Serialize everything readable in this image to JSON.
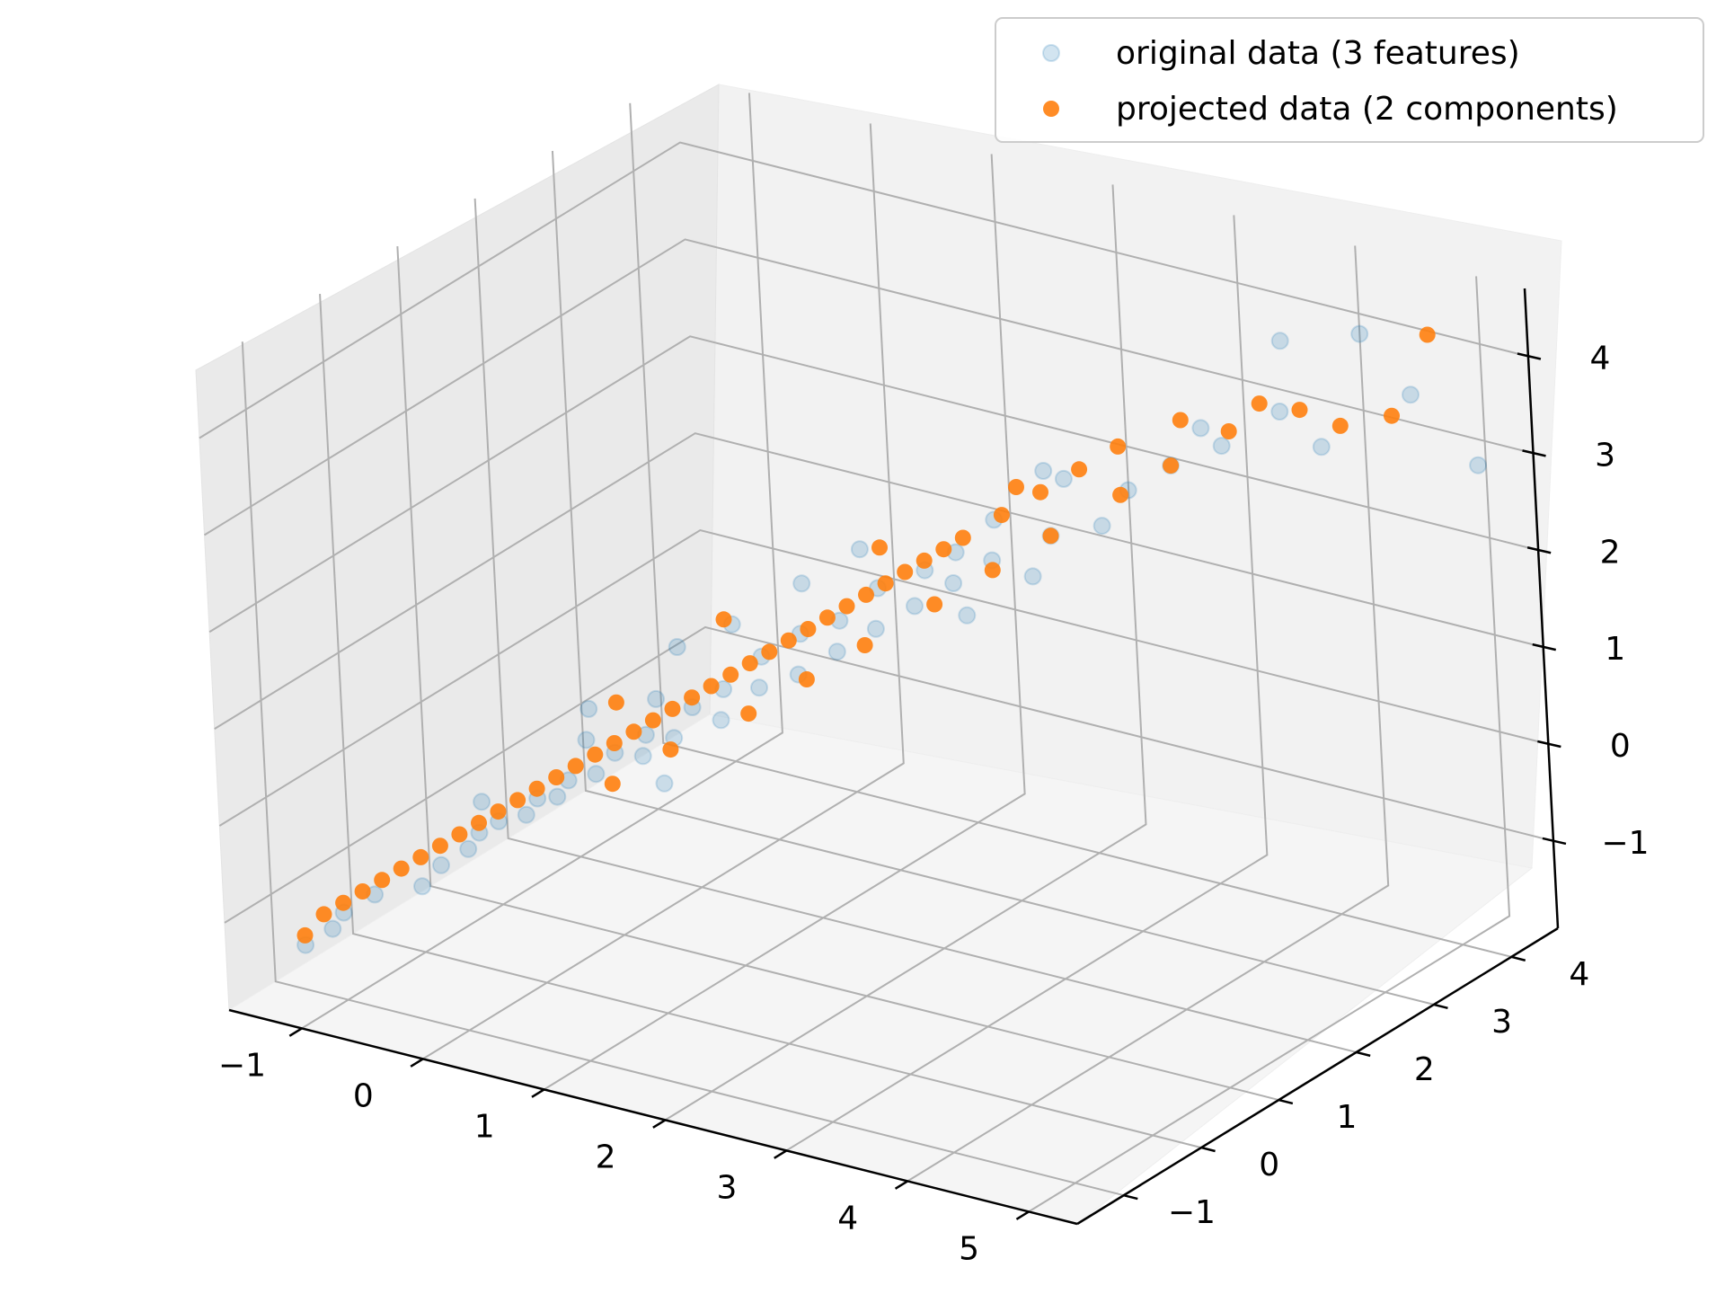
{
  "chart_data": {
    "type": "scatter",
    "projection": "3d",
    "title": "",
    "xlabel": "",
    "ylabel": "",
    "zlabel": "",
    "xlim": [
      -1.6,
      5.4
    ],
    "ylim": [
      -1.6,
      4.6
    ],
    "zlim": [
      -1.9,
      4.7
    ],
    "x_ticks": [
      -1,
      0,
      1,
      2,
      3,
      4,
      5
    ],
    "y_ticks": [
      -1,
      0,
      1,
      2,
      3,
      4
    ],
    "z_ticks": [
      -1,
      0,
      1,
      2,
      3,
      4
    ],
    "grid": true,
    "legend_position": "top-right",
    "series": [
      {
        "name": "original data (3 features)",
        "color": "#1f77b4",
        "alpha": 0.2,
        "points": [
          [
            -1.2,
            -1.2,
            -1.3
          ],
          [
            -1.1,
            -1.0,
            -1.2
          ],
          [
            -1.0,
            -1.0,
            -1.0
          ],
          [
            -0.8,
            -0.9,
            -0.8
          ],
          [
            -0.6,
            -0.6,
            -0.8
          ],
          [
            -0.5,
            -0.5,
            -0.6
          ],
          [
            -0.4,
            -0.3,
            -0.5
          ],
          [
            -0.3,
            -0.3,
            -0.3
          ],
          [
            -0.2,
            -0.2,
            -0.2
          ],
          [
            -0.1,
            0.0,
            -0.2
          ],
          [
            0.0,
            0.0,
            0.0
          ],
          [
            0.1,
            0.1,
            0.0
          ],
          [
            0.2,
            0.1,
            0.2
          ],
          [
            0.3,
            0.3,
            0.2
          ],
          [
            0.3,
            0.2,
            0.6
          ],
          [
            0.4,
            0.4,
            0.4
          ],
          [
            0.5,
            0.6,
            0.3
          ],
          [
            0.6,
            0.5,
            0.6
          ],
          [
            0.7,
            0.7,
            0.5
          ],
          [
            0.7,
            0.5,
            1.0
          ],
          [
            0.8,
            0.8,
            0.8
          ],
          [
            0.9,
            1.0,
            0.6
          ],
          [
            1.0,
            0.9,
            1.0
          ],
          [
            1.1,
            1.2,
            0.9
          ],
          [
            1.2,
            1.1,
            1.3
          ],
          [
            1.3,
            1.4,
            1.0
          ],
          [
            1.4,
            1.3,
            1.5
          ],
          [
            1.5,
            1.6,
            1.2
          ],
          [
            1.6,
            1.5,
            1.6
          ],
          [
            1.7,
            1.8,
            1.4
          ],
          [
            1.8,
            1.7,
            1.9
          ],
          [
            1.9,
            2.0,
            1.6
          ],
          [
            2.0,
            2.0,
            2.0
          ],
          [
            2.1,
            2.2,
            1.8
          ],
          [
            2.2,
            2.1,
            2.2
          ],
          [
            2.3,
            2.4,
            2.0
          ],
          [
            2.4,
            2.3,
            2.5
          ],
          [
            2.6,
            2.7,
            2.2
          ],
          [
            2.8,
            2.6,
            2.9
          ],
          [
            3.0,
            3.1,
            2.6
          ],
          [
            0.4,
            0.1,
            1.0
          ],
          [
            0.9,
            0.5,
            1.6
          ],
          [
            1.5,
            1.2,
            2.1
          ],
          [
            1.8,
            1.5,
            2.4
          ],
          [
            2.2,
            2.2,
            1.5
          ],
          [
            2.5,
            2.6,
            1.8
          ],
          [
            2.9,
            2.9,
            2.3
          ],
          [
            3.3,
            3.2,
            2.9
          ],
          [
            3.6,
            3.4,
            3.1
          ],
          [
            3.9,
            3.7,
            3.4
          ],
          [
            4.1,
            3.9,
            3.0
          ],
          [
            4.6,
            4.3,
            3.5
          ],
          [
            5.0,
            4.5,
            2.8
          ],
          [
            4.2,
            4.3,
            4.0
          ],
          [
            3.8,
            3.9,
            4.0
          ],
          [
            3.5,
            3.3,
            3.3
          ],
          [
            2.7,
            2.5,
            3.0
          ],
          [
            1.1,
            0.9,
            1.7
          ],
          [
            0.6,
            0.7,
            0.0
          ],
          [
            -0.2,
            -0.4,
            0.1
          ]
        ]
      },
      {
        "name": "projected data (2 components)",
        "color": "#ff7f0e",
        "alpha": 0.9,
        "points": [
          [
            -1.2,
            -1.2,
            -1.2
          ],
          [
            -1.1,
            -1.1,
            -1.0
          ],
          [
            -1.0,
            -1.0,
            -0.9
          ],
          [
            -0.9,
            -0.9,
            -0.8
          ],
          [
            -0.8,
            -0.8,
            -0.7
          ],
          [
            -0.7,
            -0.7,
            -0.6
          ],
          [
            -0.6,
            -0.6,
            -0.5
          ],
          [
            -0.5,
            -0.5,
            -0.4
          ],
          [
            -0.4,
            -0.4,
            -0.3
          ],
          [
            -0.3,
            -0.3,
            -0.2
          ],
          [
            -0.2,
            -0.2,
            -0.1
          ],
          [
            -0.1,
            -0.1,
            0.0
          ],
          [
            0.0,
            0.0,
            0.1
          ],
          [
            0.1,
            0.1,
            0.2
          ],
          [
            0.2,
            0.2,
            0.3
          ],
          [
            0.3,
            0.3,
            0.4
          ],
          [
            0.4,
            0.4,
            0.5
          ],
          [
            0.5,
            0.5,
            0.6
          ],
          [
            0.6,
            0.6,
            0.7
          ],
          [
            0.7,
            0.7,
            0.8
          ],
          [
            0.8,
            0.8,
            0.9
          ],
          [
            0.9,
            0.9,
            1.0
          ],
          [
            1.0,
            1.0,
            1.1
          ],
          [
            1.1,
            1.1,
            1.2
          ],
          [
            1.2,
            1.2,
            1.3
          ],
          [
            1.3,
            1.3,
            1.4
          ],
          [
            1.4,
            1.4,
            1.5
          ],
          [
            1.5,
            1.5,
            1.6
          ],
          [
            1.6,
            1.6,
            1.7
          ],
          [
            1.7,
            1.7,
            1.8
          ],
          [
            1.8,
            1.8,
            1.9
          ],
          [
            1.9,
            1.9,
            2.0
          ],
          [
            2.0,
            2.0,
            2.1
          ],
          [
            2.1,
            2.1,
            2.2
          ],
          [
            2.2,
            2.2,
            2.3
          ],
          [
            2.4,
            2.4,
            2.5
          ],
          [
            2.6,
            2.6,
            2.7
          ],
          [
            2.8,
            2.8,
            2.9
          ],
          [
            3.0,
            3.0,
            3.1
          ],
          [
            0.3,
            0.5,
            0.0
          ],
          [
            0.6,
            0.8,
            0.3
          ],
          [
            1.0,
            1.2,
            0.6
          ],
          [
            1.3,
            1.5,
            0.9
          ],
          [
            1.6,
            1.8,
            1.2
          ],
          [
            2.0,
            2.1,
            1.6
          ],
          [
            2.3,
            2.4,
            1.9
          ],
          [
            2.6,
            2.7,
            2.2
          ],
          [
            3.0,
            3.0,
            2.6
          ],
          [
            3.3,
            3.2,
            2.9
          ],
          [
            3.6,
            3.5,
            3.2
          ],
          [
            3.8,
            3.6,
            3.5
          ],
          [
            4.0,
            3.8,
            3.4
          ],
          [
            4.2,
            4.0,
            3.2
          ],
          [
            4.5,
            4.2,
            3.3
          ],
          [
            4.7,
            4.4,
            4.1
          ],
          [
            3.4,
            3.2,
            3.4
          ],
          [
            2.6,
            2.3,
            2.9
          ],
          [
            1.9,
            1.6,
            2.4
          ],
          [
            1.1,
            0.8,
            1.8
          ],
          [
            0.5,
            0.3,
            1.0
          ]
        ]
      }
    ]
  }
}
